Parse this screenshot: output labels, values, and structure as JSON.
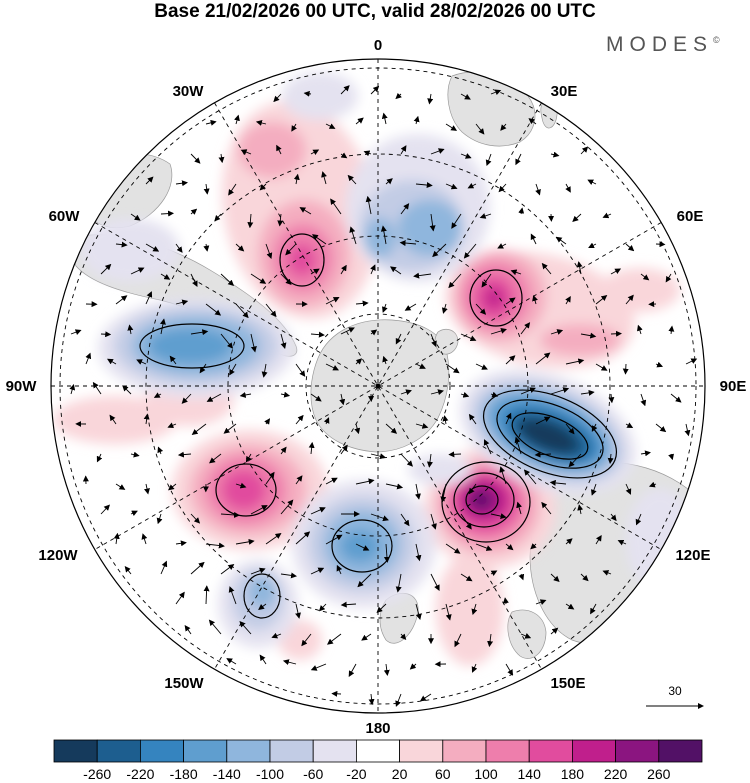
{
  "title": "Base 21/02/2026 00 UTC, valid 28/02/2026 00 UTC",
  "brand": "MODES",
  "brand_mark": "©",
  "longitude_labels": {
    "lon_0": "0",
    "lon_30e": "30E",
    "lon_60e": "60E",
    "lon_90e": "90E",
    "lon_120e": "120E",
    "lon_150e": "150E",
    "lon_180": "180",
    "lon_150w": "150W",
    "lon_120w": "120W",
    "lon_90w": "90W",
    "lon_60w": "60W",
    "lon_30w": "30W"
  },
  "vector_reference": "30",
  "colorbar": {
    "ticks": [
      "-260",
      "-220",
      "-180",
      "-140",
      "-100",
      "-60",
      "-20",
      "20",
      "60",
      "100",
      "140",
      "180",
      "220",
      "260"
    ],
    "colors": [
      "#153a5c",
      "#1d5e8f",
      "#3584bf",
      "#5f9ecf",
      "#8fb6dd",
      "#c2cce5",
      "#e4e2f0",
      "#ffffff",
      "#f9d6da",
      "#f4adc0",
      "#ee7eac",
      "#e14c9e",
      "#c01f8c",
      "#8b1580",
      "#521166"
    ]
  },
  "anomalies": [
    {
      "name": "anomaly-positive-east-120e",
      "value": 260
    },
    {
      "name": "anomaly-negative-east-90e",
      "value": -260
    },
    {
      "name": "anomaly-positive-east-50e",
      "value": 180
    },
    {
      "name": "anomaly-positive-100w",
      "value": 180
    },
    {
      "name": "anomaly-positive-40w",
      "value": 140
    },
    {
      "name": "anomaly-negative-80w",
      "value": -140
    },
    {
      "name": "anomaly-negative-170w",
      "value": -140
    },
    {
      "name": "anomaly-negative-10e",
      "value": -100
    },
    {
      "name": "anomaly-negative-140w",
      "value": -100
    }
  ]
}
